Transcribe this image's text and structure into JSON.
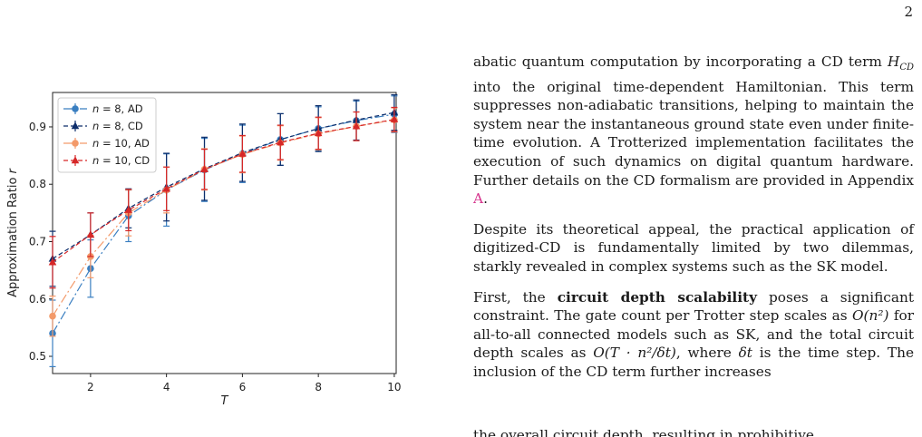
{
  "page_number": "2",
  "chart_data": {
    "type": "line",
    "xlabel": "T",
    "ylabel": "Approximation Ratio r",
    "xlim": [
      1,
      10.05
    ],
    "ylim": [
      0.47,
      0.96
    ],
    "xticks": [
      2,
      4,
      6,
      8,
      10
    ],
    "yticks": [
      0.5,
      0.6,
      0.7,
      0.8,
      0.9
    ],
    "grid": false,
    "legend_position": "top-left",
    "x": [
      1,
      2,
      3,
      4,
      5,
      6,
      7,
      8,
      9,
      10
    ],
    "series": [
      {
        "name": "n = 8, AD",
        "marker": "circle",
        "dash": "10,3,2,3",
        "color": "#3a7fc1",
        "values": [
          0.54,
          0.653,
          0.745,
          0.79,
          0.825,
          0.853,
          0.878,
          0.897,
          0.911,
          0.922
        ],
        "errors": [
          0.058,
          0.05,
          0.045,
          0.063,
          0.055,
          0.05,
          0.045,
          0.038,
          0.034,
          0.032
        ]
      },
      {
        "name": "n = 8, CD",
        "marker": "triangle",
        "dash": "5,3",
        "color": "#0d2e6b",
        "values": [
          0.67,
          0.712,
          0.758,
          0.795,
          0.827,
          0.855,
          0.878,
          0.897,
          0.912,
          0.925
        ],
        "errors": [
          0.048,
          0.038,
          0.034,
          0.059,
          0.055,
          0.05,
          0.045,
          0.04,
          0.035,
          0.031
        ]
      },
      {
        "name": "n = 10, AD",
        "marker": "circle",
        "dash": "10,3,2,3",
        "color": "#f39a6a",
        "values": [
          0.57,
          0.674,
          0.75,
          0.79,
          0.826,
          0.852,
          0.872,
          0.888,
          0.901,
          0.912
        ],
        "errors": [
          0.035,
          0.037,
          0.04,
          0.04,
          0.036,
          0.032,
          0.03,
          0.028,
          0.025,
          0.021
        ]
      },
      {
        "name": "n = 10, CD",
        "marker": "triangle",
        "dash": "5,3",
        "color": "#d62728",
        "values": [
          0.664,
          0.712,
          0.755,
          0.792,
          0.826,
          0.853,
          0.873,
          0.889,
          0.901,
          0.913
        ],
        "errors": [
          0.045,
          0.038,
          0.036,
          0.038,
          0.035,
          0.032,
          0.03,
          0.028,
          0.025,
          0.021
        ]
      }
    ]
  },
  "body": {
    "p1": {
      "before": "abatic quantum computation by incorporating a CD term ",
      "math": "H",
      "math_sub": "CD",
      "after": " into the original time-dependent Hamiltonian. This term suppresses non-adiabatic transitions, helping to maintain the system near the instantaneous ground state even under finite-time evolution. A Trotterized implementation facilitates the execution of such dynamics on digital quantum hardware. Further details on the CD formalism are provided in Appendix ",
      "link": "A",
      "end": "."
    },
    "p2": "Despite its theoretical appeal, the practical application of digitized-CD is fundamentally limited by two dilemmas, starkly revealed in complex systems such as the SK model.",
    "p3": {
      "before": "First, the ",
      "bold": "circuit depth scalability",
      "mid1": " poses a significant constraint. The gate count per Trotter step scales as ",
      "math1": "O(n²)",
      "mid2": " for all-to-all connected models such as SK, and the total circuit depth scales as ",
      "math2": "O(T · n²/δt)",
      "mid3": ", where ",
      "math3": "δt",
      "after": " is the time step. The inclusion of the CD term further increases"
    },
    "cut_line": "the overall circuit depth, resulting in prohibitive"
  }
}
